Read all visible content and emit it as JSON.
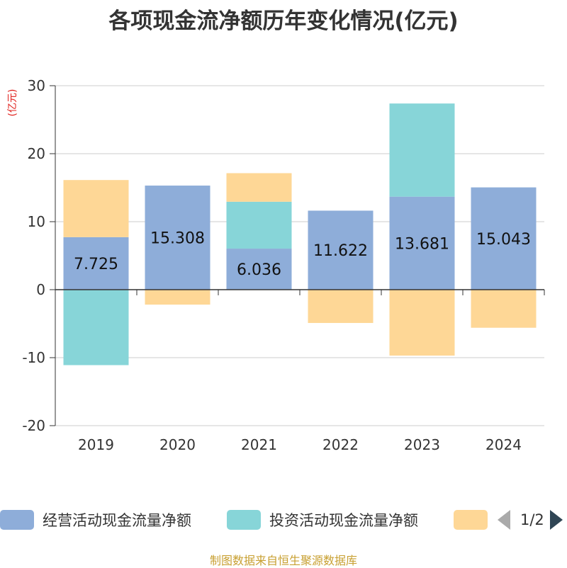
{
  "title": "各项现金流净额历年变化情况(亿元)",
  "unit_label": "(亿元)",
  "source": "制图数据来自恒生聚源数据库",
  "legend_pager": "1/2",
  "chart_data": {
    "type": "bar",
    "stacked": true,
    "categories": [
      "2019",
      "2020",
      "2021",
      "2022",
      "2023",
      "2024"
    ],
    "ylim": [
      -20,
      30
    ],
    "yticks": [
      30,
      20,
      10,
      0,
      -10,
      -20
    ],
    "grid": true,
    "legend_position": "bottom",
    "series": [
      {
        "name": "经营活动现金流量净额",
        "color": "#8eadd9",
        "values": [
          7.725,
          15.308,
          6.036,
          11.622,
          13.681,
          15.043
        ],
        "labels": [
          "7.725",
          "15.308",
          "6.036",
          "11.622",
          "13.681",
          "15.043"
        ]
      },
      {
        "name": "投资活动现金流量净额",
        "color": "#87d5d8",
        "values": [
          -11.1,
          0,
          6.9,
          0,
          13.7,
          0
        ]
      },
      {
        "name": "",
        "color": "#fed796",
        "values": [
          8.4,
          -2.2,
          4.2,
          -4.9,
          -9.7,
          -5.6
        ]
      }
    ]
  }
}
